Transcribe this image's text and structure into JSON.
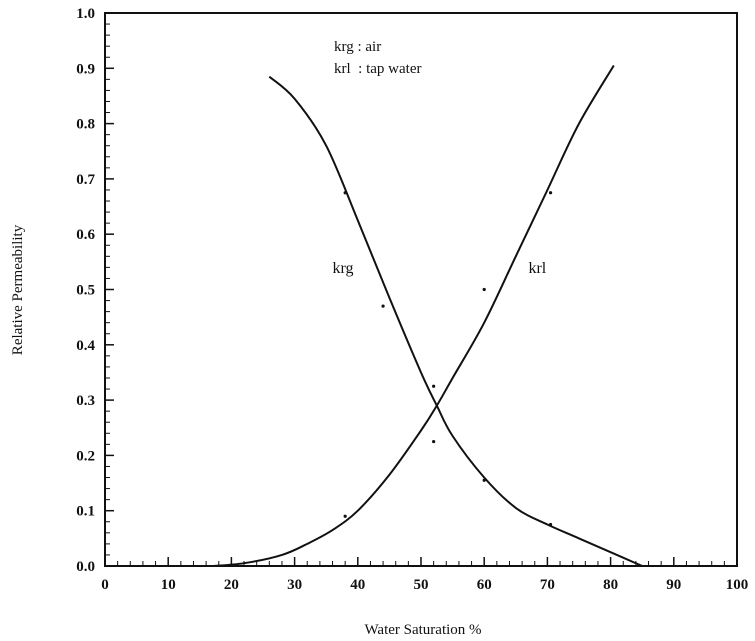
{
  "chart_data": {
    "type": "line",
    "title": "",
    "xlabel": "Water Saturation %",
    "ylabel": "Relative Permeability",
    "xlim": [
      0,
      100
    ],
    "ylim": [
      0,
      1.0
    ],
    "grid": false,
    "x_ticks": [
      0,
      10,
      20,
      30,
      40,
      50,
      60,
      70,
      80,
      90,
      100
    ],
    "x_tick_labels": [
      "0",
      "10",
      "20",
      "30",
      "40",
      "50",
      "60",
      "70",
      "80",
      "90",
      "100"
    ],
    "y_ticks": [
      0,
      0.1,
      0.2,
      0.3,
      0.4,
      0.5,
      0.6,
      0.7,
      0.8,
      0.9,
      1.0
    ],
    "y_tick_labels": [
      "0.0",
      "0.1",
      "0.2",
      "0.3",
      "0.4",
      "0.5",
      "0.6",
      "0.7",
      "0.8",
      "0.9",
      "1.0"
    ],
    "legend": {
      "placement": "top-center",
      "entries": [
        "krg : air",
        "krl  : tap water"
      ]
    },
    "series": [
      {
        "name": "krg",
        "label_at": [
          36,
          0.53
        ],
        "x": [
          26,
          30,
          35,
          40,
          45,
          50,
          52.5,
          55,
          60,
          65,
          70,
          75,
          80,
          85
        ],
        "y": [
          0.885,
          0.845,
          0.76,
          0.625,
          0.485,
          0.35,
          0.29,
          0.235,
          0.16,
          0.105,
          0.075,
          0.05,
          0.025,
          0.0
        ]
      },
      {
        "name": "krl",
        "label_at": [
          67,
          0.53
        ],
        "x": [
          17,
          22,
          28,
          32,
          36,
          40,
          45,
          50,
          52.5,
          55,
          60,
          65,
          70,
          75,
          80.5
        ],
        "y": [
          0.0,
          0.005,
          0.02,
          0.04,
          0.065,
          0.1,
          0.165,
          0.245,
          0.29,
          0.34,
          0.44,
          0.56,
          0.68,
          0.8,
          0.905
        ]
      }
    ],
    "points": [
      {
        "x": 38,
        "y": 0.675
      },
      {
        "x": 44,
        "y": 0.47
      },
      {
        "x": 52,
        "y": 0.325
      },
      {
        "x": 52,
        "y": 0.225
      },
      {
        "x": 60,
        "y": 0.5
      },
      {
        "x": 60,
        "y": 0.155
      },
      {
        "x": 70.5,
        "y": 0.675
      },
      {
        "x": 70.5,
        "y": 0.075
      },
      {
        "x": 38,
        "y": 0.09
      }
    ]
  }
}
